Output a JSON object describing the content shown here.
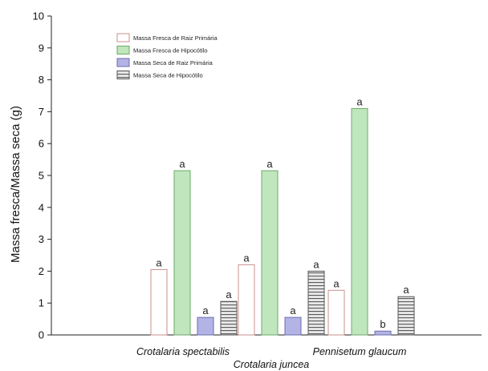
{
  "chart_data": {
    "type": "bar",
    "ylabel": "Massa fresca/Massa seca (g)",
    "ylim": [
      0,
      10
    ],
    "yticks": [
      0,
      1,
      2,
      3,
      4,
      5,
      6,
      7,
      8,
      9,
      10
    ],
    "categories": [
      "Crotalaria spectabilis",
      "Crotalaria juncea",
      "Pennisetum glaucum"
    ],
    "category_labels_shown": {
      "upper": [
        "Crotalaria spectabilis",
        "Pennisetum glaucum"
      ],
      "lower": [
        "Crotalaria juncea"
      ]
    },
    "legend_position": "top-left",
    "grid": false,
    "series": [
      {
        "name": "Massa Fresca de Raiz Primária",
        "color": "#ffffff",
        "stroke": "#c9908c",
        "pattern": "solid",
        "values": [
          2.05,
          2.2,
          1.4
        ],
        "labels": [
          "a",
          "a",
          "a"
        ]
      },
      {
        "name": "Massa Fresca de Hipocótilo",
        "color": "#bfe6bc",
        "stroke": "#6fa96b",
        "pattern": "solid",
        "values": [
          5.15,
          5.15,
          7.1
        ],
        "labels": [
          "a",
          "a",
          "a"
        ]
      },
      {
        "name": "Massa Seca de Raiz Primária",
        "color": "#b3b3e6",
        "stroke": "#6c6cae",
        "pattern": "solid",
        "values": [
          0.55,
          0.55,
          0.12
        ],
        "labels": [
          "a",
          "a",
          "b"
        ]
      },
      {
        "name": "Massa Seca de Hipocótilo",
        "color": "#cfcfcf",
        "stroke": "#555555",
        "pattern": "horizontal-lines",
        "values": [
          1.05,
          2.0,
          1.2
        ],
        "labels": [
          "a",
          "a",
          "a"
        ]
      }
    ]
  }
}
